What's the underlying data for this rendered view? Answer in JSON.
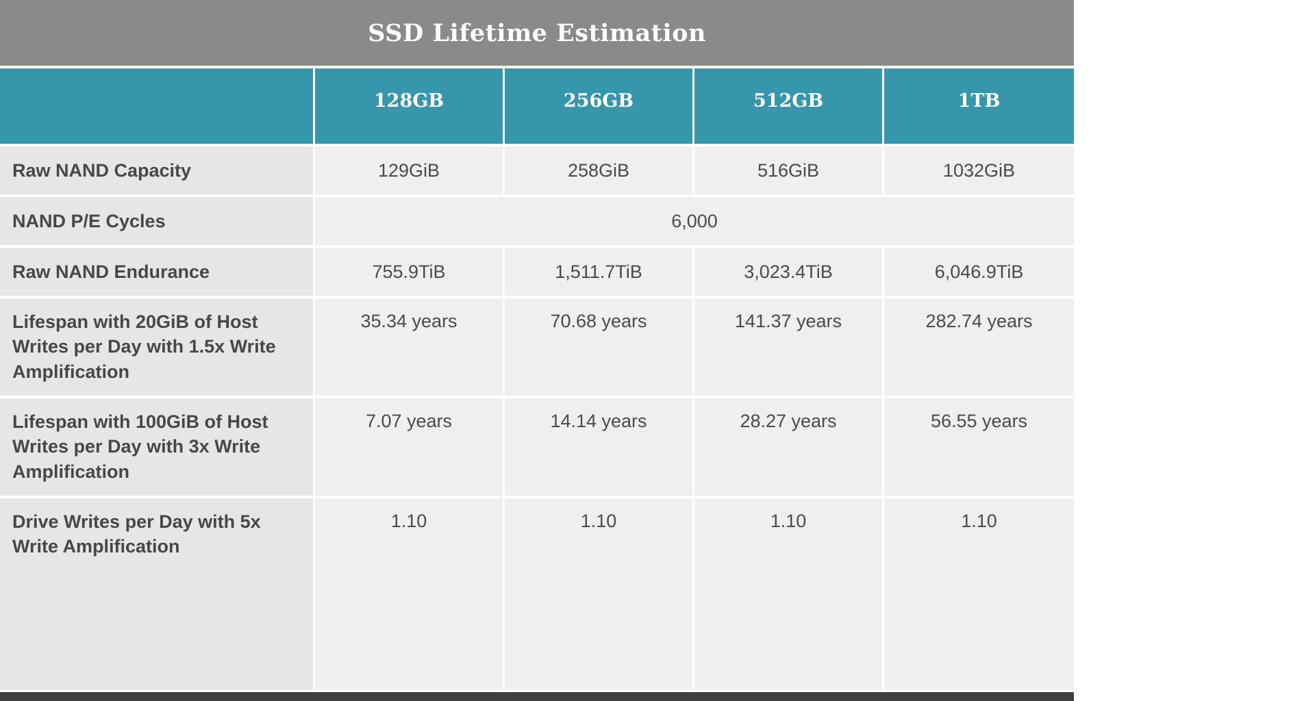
{
  "chart_data": {
    "type": "table",
    "title": "SSD Lifetime Estimation",
    "columns": [
      "128GB",
      "256GB",
      "512GB",
      "1TB"
    ],
    "rows": [
      {
        "label": "Raw NAND Capacity",
        "values": [
          "129GiB",
          "258GiB",
          "516GiB",
          "1032GiB"
        ]
      },
      {
        "label": "NAND P/E Cycles",
        "span_all_columns": true,
        "values": [
          "6,000"
        ]
      },
      {
        "label": "Raw NAND Endurance",
        "values": [
          "755.9TiB",
          "1,511.7TiB",
          "3,023.4TiB",
          "6,046.9TiB"
        ]
      },
      {
        "label": "Lifespan with 20GiB of Host Writes per Day with 1.5x Write Amplification",
        "values": [
          "35.34 years",
          "70.68 years",
          "141.37 years",
          "282.74 years"
        ]
      },
      {
        "label": "Lifespan with 100GiB of Host Writes per Day with 3x Write Amplification",
        "values": [
          "7.07 years",
          "14.14 years",
          "28.27 years",
          "56.55 years"
        ]
      },
      {
        "label": "Drive Writes per Day with 5x Write Amplification",
        "values": [
          "1.10",
          "1.10",
          "1.10",
          "1.10"
        ]
      }
    ],
    "layout": {
      "header_row_color": "#3697ac",
      "title_bar_color": "#8a8a8a",
      "label_cell_color": "#e6e6e6",
      "value_cell_color": "#efefef",
      "text_color": "#4a4a4a",
      "bottom_strip_color": "#3f3f3f",
      "grid_line_color": "#ffffff"
    }
  }
}
